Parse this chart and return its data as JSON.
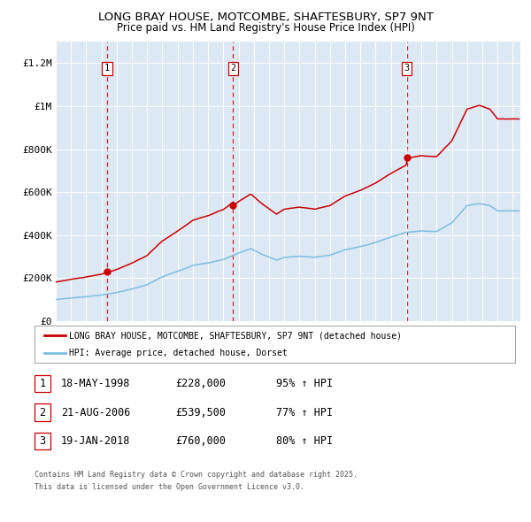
{
  "title": "LONG BRAY HOUSE, MOTCOMBE, SHAFTESBURY, SP7 9NT",
  "subtitle": "Price paid vs. HM Land Registry's House Price Index (HPI)",
  "background_color": "#dce9f5",
  "ylim": [
    0,
    1300000
  ],
  "yticks": [
    0,
    200000,
    400000,
    600000,
    800000,
    1000000,
    1200000
  ],
  "ytick_labels": [
    "£0",
    "£200K",
    "£400K",
    "£600K",
    "£800K",
    "£1M",
    "£1.2M"
  ],
  "xlim_start": 1995.0,
  "xlim_end": 2025.5,
  "xticks": [
    1995,
    1996,
    1997,
    1998,
    1999,
    2000,
    2001,
    2002,
    2003,
    2004,
    2005,
    2006,
    2007,
    2008,
    2009,
    2010,
    2011,
    2012,
    2013,
    2014,
    2015,
    2016,
    2017,
    2018,
    2019,
    2020,
    2021,
    2022,
    2023,
    2024,
    2025
  ],
  "sale_date_nums": [
    1998.38,
    2006.64,
    2018.05
  ],
  "sale_prices": [
    228000,
    539500,
    760000
  ],
  "sale_labels": [
    "1",
    "2",
    "3"
  ],
  "hpi_color": "#7bbde0",
  "price_color": "#cc0000",
  "vline_color": "#cc0000",
  "legend_label_red": "LONG BRAY HOUSE, MOTCOMBE, SHAFTESBURY, SP7 9NT (detached house)",
  "legend_label_blue": "HPI: Average price, detached house, Dorset",
  "table_data": [
    {
      "num": "1",
      "date": "18-MAY-1998",
      "price": "£228,000",
      "hpi": "95% ↑ HPI"
    },
    {
      "num": "2",
      "date": "21-AUG-2006",
      "price": "£539,500",
      "hpi": "77% ↑ HPI"
    },
    {
      "num": "3",
      "date": "19-JAN-2018",
      "price": "£760,000",
      "hpi": "80% ↑ HPI"
    }
  ],
  "footnote1": "Contains HM Land Registry data © Crown copyright and database right 2025.",
  "footnote2": "This data is licensed under the Open Government Licence v3.0."
}
